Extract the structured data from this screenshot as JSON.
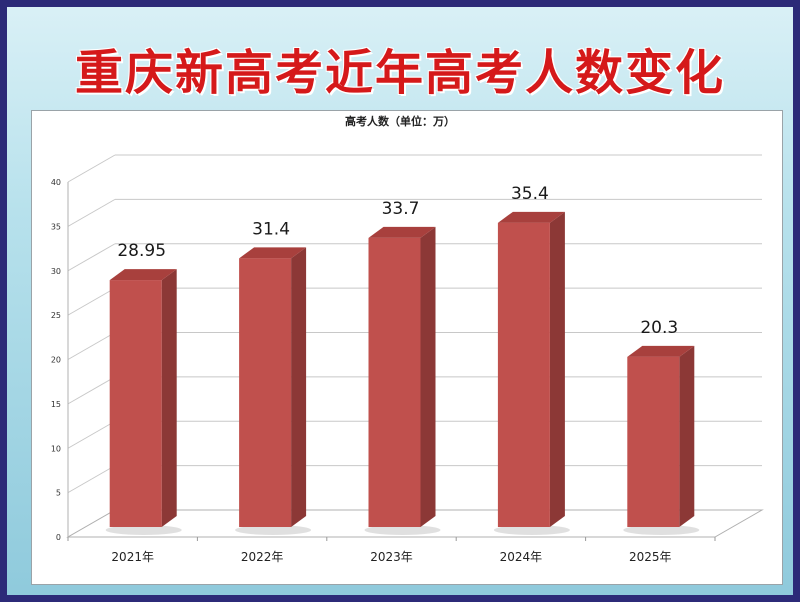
{
  "header": {
    "title": "重庆新高考近年高考人数变化"
  },
  "chart_data": {
    "type": "bar",
    "title": "高考人数（单位：万）",
    "categories": [
      "2021年",
      "2022年",
      "2023年",
      "2024年",
      "2025年"
    ],
    "values": [
      28.95,
      31.4,
      33.7,
      35.4,
      20.3
    ],
    "data_labels": [
      "28.95",
      "31.4",
      "33.7",
      "35.4",
      "20.3"
    ],
    "ylim": [
      0,
      40
    ],
    "yticks": [
      "0",
      "5",
      "10",
      "15",
      "20",
      "25",
      "30",
      "35",
      "40"
    ],
    "grid": true,
    "legend": "none",
    "bar_color": "#c0504d",
    "bar_side_color": "#8c3836",
    "bar_top_color": "#a8403d"
  }
}
